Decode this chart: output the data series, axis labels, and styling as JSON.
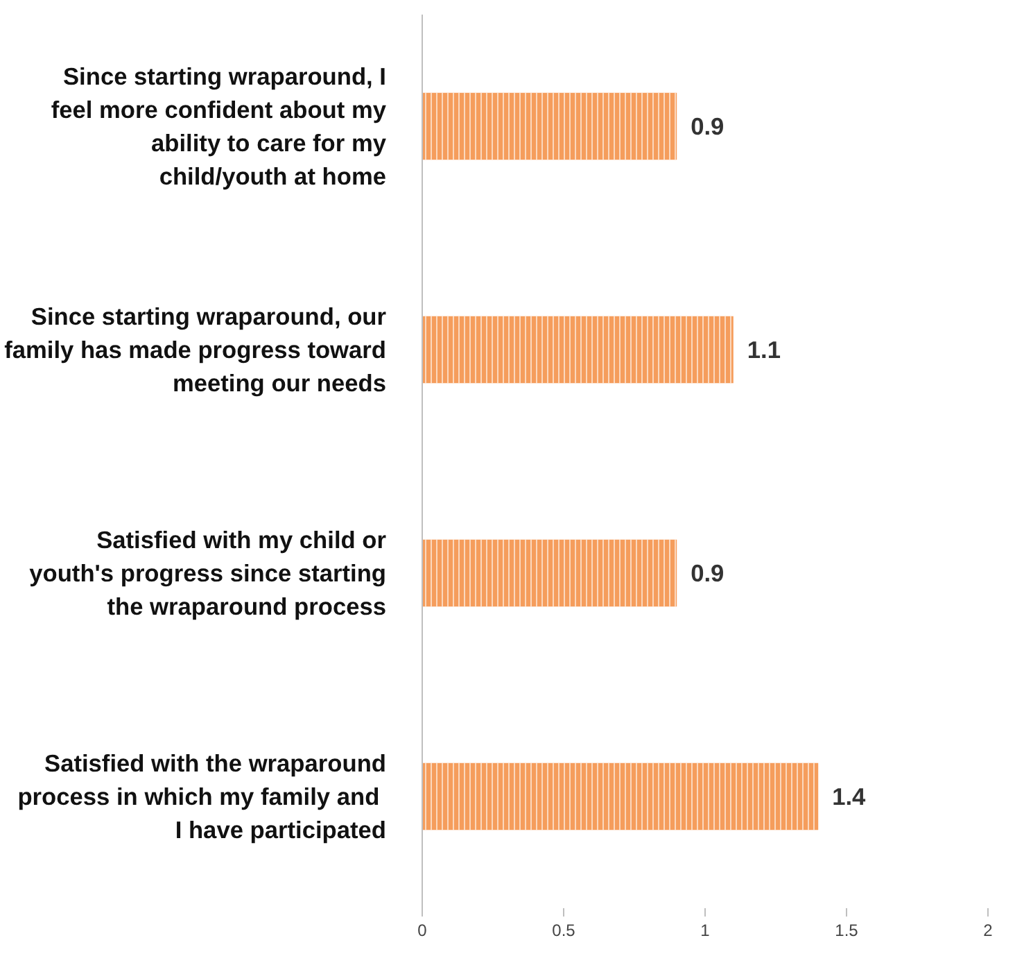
{
  "chart_data": {
    "type": "bar",
    "orientation": "horizontal",
    "categories": [
      "Since starting wraparound, I feel more confident about my ability to care for my child/youth at home",
      "Since starting wraparound, our family has made progress toward meeting our needs",
      "Satisfied with my child or youth's progress since starting the wraparound process",
      "Satisfied with the wraparound process  in which my family and I have participated"
    ],
    "values": [
      0.9,
      1.1,
      0.9,
      1.4
    ],
    "color": "#f59d5c",
    "xlim": [
      0,
      2
    ],
    "xticks": [
      0,
      0.5,
      1,
      1.5,
      2
    ],
    "data_labels": true,
    "grid": false
  }
}
